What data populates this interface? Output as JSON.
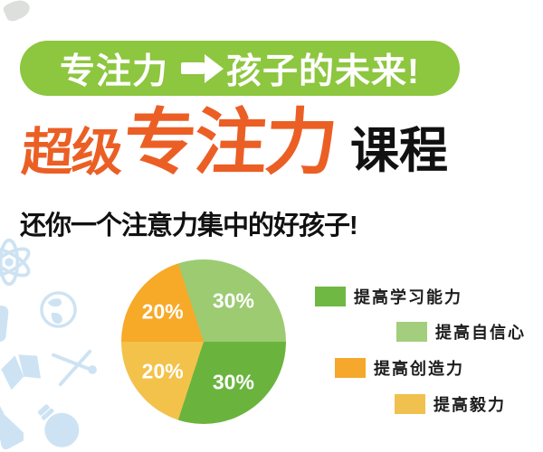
{
  "banner": {
    "left_text": "专注力",
    "right_text": "孩子的未来!",
    "arrow_icon": "right-arrow",
    "bg_color": "#8dc63f"
  },
  "title": {
    "prefix": "超级",
    "emphasis": "专注力",
    "suffix": "课程",
    "accent_color": "#eb5f25"
  },
  "subtitle": "还你一个注意力集中的好孩子!",
  "chart_data": {
    "type": "pie",
    "unit": "percent",
    "start_angle_deg": -18,
    "slices": [
      {
        "label": "提高自信心",
        "value": 30,
        "pct_label": "30%",
        "color": "#9ccb72"
      },
      {
        "label": "提高学习能力",
        "value": 30,
        "pct_label": "30%",
        "color": "#6ab43e"
      },
      {
        "label": "提高毅力",
        "value": 20,
        "pct_label": "20%",
        "color": "#f3c24b"
      },
      {
        "label": "提高创造力",
        "value": 20,
        "pct_label": "20%",
        "color": "#f7a928"
      }
    ],
    "legend": [
      {
        "label": "提高学习能力",
        "color": "#6fb844"
      },
      {
        "label": "提高自信心",
        "color": "#a2ce7d"
      },
      {
        "label": "提高创造力",
        "color": "#f5a82b"
      },
      {
        "label": "提高毅力",
        "color": "#f0c14f"
      }
    ],
    "legend_position": "right",
    "value_labels_color": "#ffffff"
  },
  "colors": {
    "icon_blue": "#cde3f3"
  }
}
